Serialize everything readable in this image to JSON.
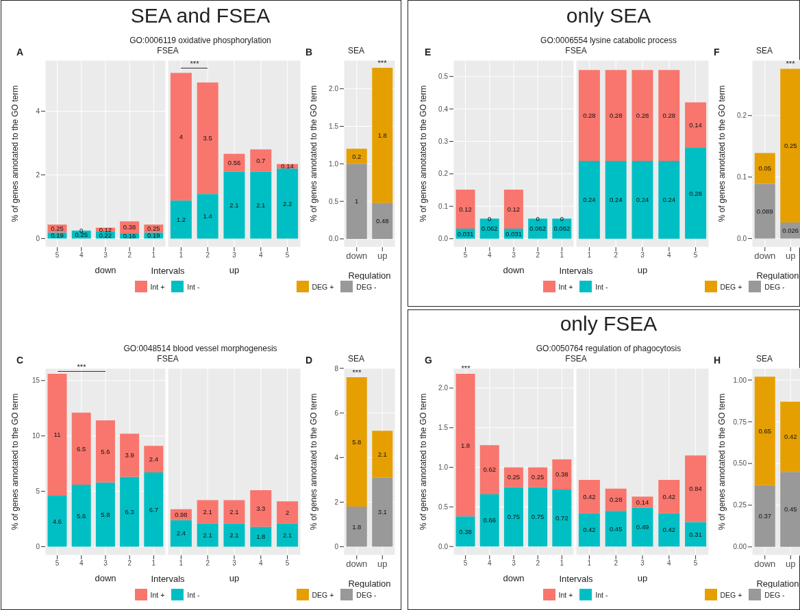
{
  "chart_data": [
    {
      "type": "bar",
      "title": "GO:0006119 oxidative phosphorylation",
      "subtitle": "FSEA",
      "xlabel": "down",
      "ylabel": "% of genes annotated to the GO term",
      "categories": [
        "5",
        "4",
        "3",
        "2",
        "1"
      ],
      "stacked": true,
      "data_labels": true,
      "grid": true,
      "legend": "bottom",
      "ylim": [
        -0.27,
        5.6
      ],
      "yticks": [
        0,
        2,
        4
      ],
      "annotations": [
        "A",
        "Intervals",
        "SEA and FSEA"
      ],
      "series": [
        {
          "name": "Int -",
          "color": "#00bfc4",
          "values": [
            0.19,
            0.25,
            0.22,
            0.16,
            0.19
          ]
        },
        {
          "name": "Int +",
          "color": "#f8766d",
          "values": [
            0.25,
            0,
            0.12,
            0.38,
            0.25
          ]
        }
      ]
    },
    {
      "type": "bar",
      "xlabel": "up",
      "categories": [
        "1",
        "2",
        "3",
        "4",
        "5"
      ],
      "stacked": true,
      "data_labels": true,
      "grid": true,
      "tick_labels": "x",
      "ylim": [
        -0.27,
        5.6
      ],
      "yticks": [
        0,
        2,
        4
      ],
      "annotations": [
        "***"
      ],
      "series": [
        {
          "color": "#00bfc4",
          "values": [
            1.2,
            1.4,
            2.1,
            2.1,
            2.2
          ]
        },
        {
          "color": "#f8766d",
          "values": [
            4,
            3.5,
            0.56,
            0.7,
            0.14
          ]
        }
      ]
    },
    {
      "type": "bar",
      "title": "SEA",
      "xlabel": "Regulation",
      "ylabel": "% of genes annotated to the GO term",
      "categories": [
        "down",
        "up"
      ],
      "stacked": true,
      "data_labels": true,
      "grid": true,
      "legend": "bottom",
      "ylim": [
        -0.11,
        2.38
      ],
      "yticks": [
        {
          "value": 0,
          "label": "0.0"
        },
        {
          "value": 0.5,
          "label": "0.5"
        },
        {
          "value": 1,
          "label": "1.0"
        },
        {
          "value": 1.5,
          "label": "1.5"
        },
        {
          "value": 2,
          "label": "2.0"
        }
      ],
      "annotations": [
        "B",
        "***"
      ],
      "series": [
        {
          "name": "DEG -",
          "color": "#999999",
          "values": [
            1,
            0.48
          ]
        },
        {
          "name": "DEG +",
          "color": "#e69f00",
          "values": [
            0.2,
            1.8
          ]
        }
      ]
    },
    {
      "type": "bar",
      "title": "GO:0006554 lysine catabolic process",
      "subtitle": "FSEA",
      "xlabel": "down",
      "ylabel": "% of genes annotated to the GO term",
      "categories": [
        "5",
        "4",
        "3",
        "2",
        "1"
      ],
      "stacked": true,
      "data_labels": true,
      "grid": true,
      "legend": "bottom",
      "ylim": [
        -0.026,
        0.55
      ],
      "yticks": [
        {
          "value": 0,
          "label": "0.0"
        },
        {
          "value": 0.1,
          "label": "0.1"
        },
        {
          "value": 0.2,
          "label": "0.2"
        },
        {
          "value": 0.3,
          "label": "0.3"
        },
        {
          "value": 0.4,
          "label": "0.4"
        },
        {
          "value": 0.5,
          "label": "0.5"
        }
      ],
      "annotations": [
        "E",
        "Intervals",
        "only SEA"
      ],
      "series": [
        {
          "name": "Int -",
          "color": "#00bfc4",
          "values": [
            0.031,
            0.062,
            0.031,
            0.062,
            0.062
          ]
        },
        {
          "name": "Int +",
          "color": "#f8766d",
          "values": [
            0.12,
            0,
            0.12,
            0,
            0
          ]
        }
      ]
    },
    {
      "type": "bar",
      "xlabel": "up",
      "categories": [
        "1",
        "2",
        "3",
        "4",
        "5"
      ],
      "stacked": true,
      "data_labels": true,
      "grid": true,
      "tick_labels": "x",
      "ylim": [
        -0.026,
        0.55
      ],
      "yticks": [
        0,
        0.1,
        0.2,
        0.3,
        0.4,
        0.5
      ],
      "series": [
        {
          "color": "#00bfc4",
          "values": [
            0.24,
            0.24,
            0.24,
            0.24,
            0.28
          ]
        },
        {
          "color": "#f8766d",
          "values": [
            0.28,
            0.28,
            0.28,
            0.28,
            0.14
          ]
        }
      ]
    },
    {
      "type": "bar",
      "title": "SEA",
      "xlabel": "Regulation",
      "ylabel": "% of genes annotated to the GO term",
      "categories": [
        "down",
        "up"
      ],
      "stacked": true,
      "data_labels": true,
      "grid": true,
      "legend": "bottom",
      "ylim": [
        -0.014,
        0.29
      ],
      "yticks": [
        {
          "value": 0,
          "label": "0.0"
        },
        {
          "value": 0.1,
          "label": "0.1"
        },
        {
          "value": 0.2,
          "label": "0.2"
        }
      ],
      "annotations": [
        "F",
        "***"
      ],
      "series": [
        {
          "name": "DEG -",
          "color": "#999999",
          "values": [
            0.089,
            0.026
          ]
        },
        {
          "name": "DEG +",
          "color": "#e69f00",
          "values": [
            0.05,
            0.25
          ]
        }
      ]
    },
    {
      "type": "bar",
      "title": "GO:0048514 blood vessel morphogenesis",
      "subtitle": "FSEA",
      "xlabel": "down",
      "ylabel": "% of genes annotated to the GO term",
      "categories": [
        "5",
        "4",
        "3",
        "2",
        "1"
      ],
      "stacked": true,
      "data_labels": true,
      "grid": true,
      "legend": "bottom",
      "ylim": [
        -0.77,
        16.1
      ],
      "yticks": [
        0,
        5,
        10,
        15
      ],
      "annotations": [
        "C",
        "Intervals",
        "***"
      ],
      "series": [
        {
          "name": "Int -",
          "color": "#00bfc4",
          "values": [
            4.6,
            5.6,
            5.8,
            6.3,
            6.7
          ]
        },
        {
          "name": "Int +",
          "color": "#f8766d",
          "values": [
            11,
            6.5,
            5.6,
            3.9,
            2.4
          ]
        }
      ]
    },
    {
      "type": "bar",
      "xlabel": "up",
      "categories": [
        "1",
        "2",
        "3",
        "4",
        "5"
      ],
      "stacked": true,
      "data_labels": true,
      "grid": true,
      "tick_labels": "x",
      "ylim": [
        -0.77,
        16.1
      ],
      "yticks": [
        0,
        5,
        10,
        15
      ],
      "series": [
        {
          "color": "#00bfc4",
          "values": [
            2.4,
            2.1,
            2.1,
            1.8,
            2.1
          ]
        },
        {
          "color": "#f8766d",
          "values": [
            0.98,
            2.1,
            2.1,
            3.3,
            2
          ]
        }
      ]
    },
    {
      "type": "bar",
      "title": "SEA",
      "xlabel": "Regulation",
      "ylabel": "% of genes annotated to the GO term",
      "categories": [
        "down",
        "up"
      ],
      "stacked": true,
      "data_labels": true,
      "grid": true,
      "legend": "bottom",
      "ylim": [
        -0.38,
        8
      ],
      "yticks": [
        0,
        2,
        4,
        6,
        8
      ],
      "annotations": [
        "D",
        "***"
      ],
      "series": [
        {
          "name": "DEG -",
          "color": "#999999",
          "values": [
            1.8,
            3.1
          ]
        },
        {
          "name": "DEG +",
          "color": "#e69f00",
          "values": [
            5.8,
            2.1
          ]
        }
      ]
    },
    {
      "type": "bar",
      "title": "GO:0050764 regulation of phagocytosis",
      "subtitle": "FSEA",
      "xlabel": "down",
      "ylabel": "% of genes annotated to the GO term",
      "categories": [
        "5",
        "4",
        "3",
        "2",
        "1"
      ],
      "stacked": true,
      "data_labels": true,
      "grid": true,
      "legend": "bottom",
      "ylim": [
        -0.11,
        2.25
      ],
      "yticks": [
        {
          "value": 0,
          "label": "0.0"
        },
        {
          "value": 0.5,
          "label": "0.5"
        },
        {
          "value": 1,
          "label": "1.0"
        },
        {
          "value": 1.5,
          "label": "1.5"
        },
        {
          "value": 2,
          "label": "2.0"
        }
      ],
      "annotations": [
        "G",
        "Intervals",
        "only FSEA",
        "***"
      ],
      "series": [
        {
          "name": "Int -",
          "color": "#00bfc4",
          "values": [
            0.38,
            0.66,
            0.75,
            0.75,
            0.72
          ]
        },
        {
          "name": "Int +",
          "color": "#f8766d",
          "values": [
            1.8,
            0.62,
            0.25,
            0.25,
            0.38
          ]
        }
      ]
    },
    {
      "type": "bar",
      "xlabel": "up",
      "categories": [
        "1",
        "2",
        "3",
        "4",
        "5"
      ],
      "stacked": true,
      "data_labels": true,
      "grid": true,
      "tick_labels": "x",
      "ylim": [
        -0.11,
        2.25
      ],
      "yticks": [
        0,
        0.5,
        1,
        1.5,
        2
      ],
      "series": [
        {
          "color": "#00bfc4",
          "values": [
            0.42,
            0.45,
            0.49,
            0.42,
            0.31
          ]
        },
        {
          "color": "#f8766d",
          "values": [
            0.42,
            0.28,
            0.14,
            0.42,
            0.84
          ]
        }
      ]
    },
    {
      "type": "bar",
      "title": "SEA",
      "xlabel": "Regulation",
      "ylabel": "% of genes annotated to the GO term",
      "categories": [
        "down",
        "up"
      ],
      "stacked": true,
      "data_labels": true,
      "grid": true,
      "legend": "bottom",
      "ylim": [
        -0.05,
        1.07
      ],
      "yticks": [
        {
          "value": 0,
          "label": "0.00"
        },
        {
          "value": 0.25,
          "label": "0.25"
        },
        {
          "value": 0.5,
          "label": "0.50"
        },
        {
          "value": 0.75,
          "label": "0.75"
        },
        {
          "value": 1,
          "label": "1.00"
        }
      ],
      "annotations": [
        "H"
      ],
      "series": [
        {
          "name": "DEG -",
          "color": "#999999",
          "values": [
            0.37,
            0.45
          ]
        },
        {
          "name": "DEG +",
          "color": "#e69f00",
          "values": [
            0.65,
            0.42
          ]
        }
      ]
    }
  ]
}
